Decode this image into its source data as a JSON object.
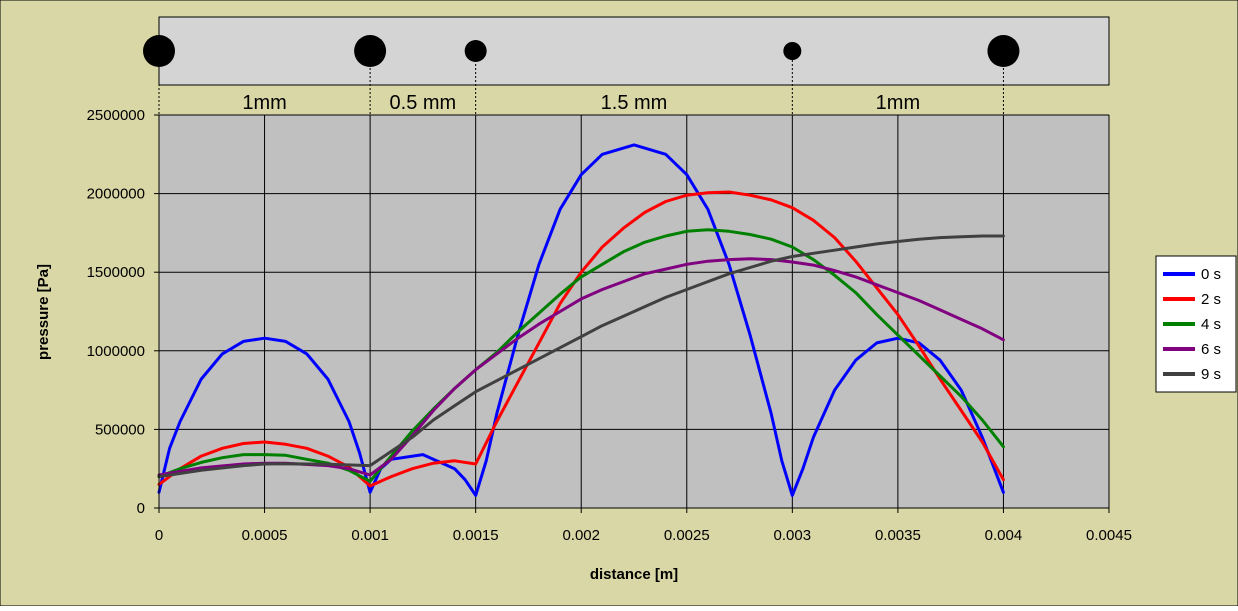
{
  "colors": {
    "chart_area": "#D9D7A6",
    "plot_area": "#C0C0C0",
    "grid": "#000000"
  },
  "chart_data": {
    "type": "line",
    "xlabel": "distance [m]",
    "ylabel": "pressure [Pa]",
    "xlim": [
      0,
      0.0045
    ],
    "ylim": [
      0,
      2500000
    ],
    "x_ticks": [
      "0",
      "0.0005",
      "0.001",
      "0.0015",
      "0.002",
      "0.0025",
      "0.003",
      "0.0035",
      "0.004",
      "0.0045"
    ],
    "y_ticks": [
      "0",
      "500000",
      "1000000",
      "1500000",
      "2000000",
      "2500000"
    ],
    "grid": true,
    "legend_position": "right",
    "series": [
      {
        "name": "0 s",
        "color": "#0000FF",
        "points": [
          [
            0,
            100000
          ],
          [
            5e-05,
            380000
          ],
          [
            0.0001,
            550000
          ],
          [
            0.0002,
            820000
          ],
          [
            0.0003,
            980000
          ],
          [
            0.0004,
            1060000
          ],
          [
            0.0005,
            1080000
          ],
          [
            0.0006,
            1060000
          ],
          [
            0.0007,
            980000
          ],
          [
            0.0008,
            820000
          ],
          [
            0.0009,
            550000
          ],
          [
            0.00095,
            350000
          ],
          [
            0.001,
            100000
          ],
          [
            0.00105,
            250000
          ],
          [
            0.0011,
            310000
          ],
          [
            0.00125,
            340000
          ],
          [
            0.0014,
            250000
          ],
          [
            0.00145,
            180000
          ],
          [
            0.0015,
            80000
          ],
          [
            0.00155,
            300000
          ],
          [
            0.0016,
            600000
          ],
          [
            0.0017,
            1100000
          ],
          [
            0.0018,
            1550000
          ],
          [
            0.0019,
            1900000
          ],
          [
            0.002,
            2120000
          ],
          [
            0.0021,
            2250000
          ],
          [
            0.00225,
            2310000
          ],
          [
            0.0024,
            2250000
          ],
          [
            0.0025,
            2120000
          ],
          [
            0.0026,
            1900000
          ],
          [
            0.0027,
            1550000
          ],
          [
            0.0028,
            1100000
          ],
          [
            0.0029,
            600000
          ],
          [
            0.00295,
            300000
          ],
          [
            0.003,
            80000
          ],
          [
            0.00305,
            250000
          ],
          [
            0.0031,
            450000
          ],
          [
            0.0032,
            750000
          ],
          [
            0.0033,
            940000
          ],
          [
            0.0034,
            1050000
          ],
          [
            0.0035,
            1080000
          ],
          [
            0.0036,
            1050000
          ],
          [
            0.0037,
            940000
          ],
          [
            0.0038,
            750000
          ],
          [
            0.0039,
            450000
          ],
          [
            0.004,
            100000
          ]
        ]
      },
      {
        "name": "2 s",
        "color": "#FF0000",
        "points": [
          [
            0,
            150000
          ],
          [
            0.0001,
            250000
          ],
          [
            0.0002,
            330000
          ],
          [
            0.0003,
            380000
          ],
          [
            0.0004,
            410000
          ],
          [
            0.0005,
            420000
          ],
          [
            0.0006,
            405000
          ],
          [
            0.0007,
            380000
          ],
          [
            0.0008,
            330000
          ],
          [
            0.0009,
            260000
          ],
          [
            0.001,
            140000
          ],
          [
            0.0011,
            200000
          ],
          [
            0.0012,
            250000
          ],
          [
            0.0013,
            285000
          ],
          [
            0.0014,
            300000
          ],
          [
            0.0015,
            280000
          ],
          [
            0.0016,
            550000
          ],
          [
            0.0017,
            800000
          ],
          [
            0.0018,
            1050000
          ],
          [
            0.0019,
            1300000
          ],
          [
            0.002,
            1500000
          ],
          [
            0.0021,
            1660000
          ],
          [
            0.0022,
            1780000
          ],
          [
            0.0023,
            1880000
          ],
          [
            0.0024,
            1950000
          ],
          [
            0.0025,
            1990000
          ],
          [
            0.0026,
            2005000
          ],
          [
            0.0027,
            2010000
          ],
          [
            0.0028,
            1990000
          ],
          [
            0.0029,
            1960000
          ],
          [
            0.003,
            1910000
          ],
          [
            0.0031,
            1830000
          ],
          [
            0.0032,
            1720000
          ],
          [
            0.0033,
            1570000
          ],
          [
            0.0034,
            1400000
          ],
          [
            0.0035,
            1230000
          ],
          [
            0.0036,
            1030000
          ],
          [
            0.0037,
            820000
          ],
          [
            0.0038,
            620000
          ],
          [
            0.0039,
            420000
          ],
          [
            0.004,
            180000
          ]
        ]
      },
      {
        "name": "4 s",
        "color": "#008000",
        "points": [
          [
            0,
            200000
          ],
          [
            0.0001,
            250000
          ],
          [
            0.0002,
            290000
          ],
          [
            0.0003,
            320000
          ],
          [
            0.0004,
            340000
          ],
          [
            0.0005,
            340000
          ],
          [
            0.0006,
            335000
          ],
          [
            0.0007,
            310000
          ],
          [
            0.0008,
            285000
          ],
          [
            0.0009,
            240000
          ],
          [
            0.001,
            170000
          ],
          [
            0.0011,
            330000
          ],
          [
            0.0012,
            490000
          ],
          [
            0.0013,
            630000
          ],
          [
            0.0014,
            760000
          ],
          [
            0.0015,
            880000
          ],
          [
            0.0016,
            990000
          ],
          [
            0.0017,
            1120000
          ],
          [
            0.0018,
            1240000
          ],
          [
            0.0019,
            1360000
          ],
          [
            0.002,
            1470000
          ],
          [
            0.0021,
            1550000
          ],
          [
            0.0022,
            1630000
          ],
          [
            0.0023,
            1690000
          ],
          [
            0.0024,
            1730000
          ],
          [
            0.0025,
            1760000
          ],
          [
            0.0026,
            1770000
          ],
          [
            0.0027,
            1760000
          ],
          [
            0.0028,
            1740000
          ],
          [
            0.0029,
            1710000
          ],
          [
            0.003,
            1660000
          ],
          [
            0.0031,
            1580000
          ],
          [
            0.0032,
            1480000
          ],
          [
            0.0033,
            1370000
          ],
          [
            0.0034,
            1230000
          ],
          [
            0.0035,
            1100000
          ],
          [
            0.0036,
            970000
          ],
          [
            0.0037,
            840000
          ],
          [
            0.0038,
            710000
          ],
          [
            0.0039,
            560000
          ],
          [
            0.004,
            390000
          ]
        ]
      },
      {
        "name": "6 s",
        "color": "#800080",
        "points": [
          [
            0,
            210000
          ],
          [
            0.0002,
            255000
          ],
          [
            0.0004,
            280000
          ],
          [
            0.0005,
            285000
          ],
          [
            0.0006,
            285000
          ],
          [
            0.0008,
            270000
          ],
          [
            0.0009,
            250000
          ],
          [
            0.001,
            210000
          ],
          [
            0.0011,
            310000
          ],
          [
            0.0012,
            460000
          ],
          [
            0.0013,
            620000
          ],
          [
            0.0014,
            760000
          ],
          [
            0.0015,
            880000
          ],
          [
            0.0016,
            980000
          ],
          [
            0.0017,
            1080000
          ],
          [
            0.0018,
            1170000
          ],
          [
            0.0019,
            1250000
          ],
          [
            0.002,
            1330000
          ],
          [
            0.0021,
            1390000
          ],
          [
            0.0022,
            1440000
          ],
          [
            0.0023,
            1490000
          ],
          [
            0.0024,
            1520000
          ],
          [
            0.0025,
            1550000
          ],
          [
            0.0026,
            1570000
          ],
          [
            0.0027,
            1580000
          ],
          [
            0.0028,
            1585000
          ],
          [
            0.0029,
            1580000
          ],
          [
            0.003,
            1565000
          ],
          [
            0.0031,
            1545000
          ],
          [
            0.0032,
            1510000
          ],
          [
            0.0033,
            1470000
          ],
          [
            0.0034,
            1420000
          ],
          [
            0.0035,
            1370000
          ],
          [
            0.0036,
            1320000
          ],
          [
            0.0037,
            1260000
          ],
          [
            0.0038,
            1200000
          ],
          [
            0.0039,
            1140000
          ],
          [
            0.004,
            1070000
          ]
        ]
      },
      {
        "name": "9 s",
        "color": "#404040",
        "points": [
          [
            0,
            200000
          ],
          [
            0.0002,
            240000
          ],
          [
            0.0004,
            270000
          ],
          [
            0.0005,
            280000
          ],
          [
            0.0006,
            282000
          ],
          [
            0.0008,
            278000
          ],
          [
            0.001,
            270000
          ],
          [
            0.0011,
            360000
          ],
          [
            0.0012,
            450000
          ],
          [
            0.0013,
            560000
          ],
          [
            0.0014,
            650000
          ],
          [
            0.0015,
            740000
          ],
          [
            0.0016,
            810000
          ],
          [
            0.0017,
            880000
          ],
          [
            0.0018,
            950000
          ],
          [
            0.0019,
            1020000
          ],
          [
            0.002,
            1090000
          ],
          [
            0.0021,
            1160000
          ],
          [
            0.0022,
            1220000
          ],
          [
            0.0023,
            1280000
          ],
          [
            0.0024,
            1340000
          ],
          [
            0.0025,
            1390000
          ],
          [
            0.0026,
            1440000
          ],
          [
            0.0027,
            1490000
          ],
          [
            0.0028,
            1530000
          ],
          [
            0.0029,
            1570000
          ],
          [
            0.003,
            1600000
          ],
          [
            0.0031,
            1620000
          ],
          [
            0.0032,
            1640000
          ],
          [
            0.0033,
            1660000
          ],
          [
            0.0034,
            1680000
          ],
          [
            0.0035,
            1695000
          ],
          [
            0.0036,
            1710000
          ],
          [
            0.0037,
            1720000
          ],
          [
            0.0038,
            1725000
          ],
          [
            0.0039,
            1730000
          ],
          [
            0.004,
            1730000
          ]
        ]
      }
    ],
    "annotations": {
      "dots": [
        {
          "x": 0,
          "size": "large"
        },
        {
          "x": 0.001,
          "size": "large"
        },
        {
          "x": 0.0015,
          "size": "medium"
        },
        {
          "x": 0.003,
          "size": "small"
        },
        {
          "x": 0.004,
          "size": "large"
        }
      ],
      "dotted_marker_lines_x": [
        0,
        0.001,
        0.0015,
        0.003,
        0.004
      ],
      "segment_labels": [
        {
          "label": "1mm",
          "from": 0,
          "to": 0.001
        },
        {
          "label": "0.5 mm",
          "from": 0.001,
          "to": 0.0015
        },
        {
          "label": "1.5 mm",
          "from": 0.0015,
          "to": 0.003
        },
        {
          "label": "1mm",
          "from": 0.003,
          "to": 0.004
        }
      ]
    }
  }
}
